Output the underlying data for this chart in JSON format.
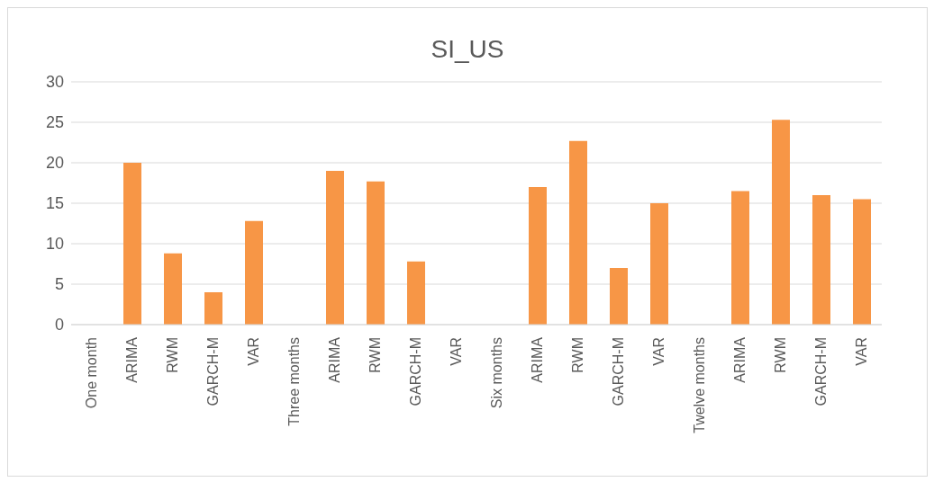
{
  "chart_data": {
    "type": "bar",
    "title": "SI_US",
    "categories": [
      "One month",
      "ARIMA",
      "RWM",
      "GARCH-M",
      "VAR",
      "Three months",
      "ARIMA",
      "RWM",
      "GARCH-M",
      "VAR",
      "Six months",
      "ARIMA",
      "RWM",
      "GARCH-M",
      "VAR",
      "Twelve months",
      "ARIMA",
      "RWM",
      "GARCH-M",
      "VAR"
    ],
    "values": [
      null,
      20,
      8.8,
      4,
      12.8,
      null,
      19,
      17.7,
      7.8,
      0,
      null,
      17,
      22.7,
      7,
      15,
      null,
      16.5,
      25.3,
      16,
      15.5
    ],
    "color": "#f79646",
    "ylim": [
      0,
      30
    ],
    "yticks": [
      0,
      5,
      10,
      15,
      20,
      25,
      30
    ],
    "grid": "y"
  }
}
